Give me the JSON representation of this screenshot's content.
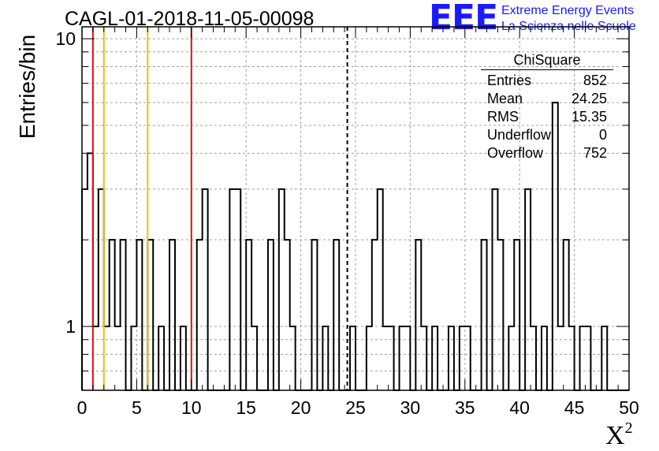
{
  "chart_data": {
    "type": "histogram",
    "title": "CAGL-01-2018-11-05-00098",
    "xlabel": "X",
    "xlabel_sup": "2",
    "ylabel": "Entries/bin",
    "xlim": [
      0,
      50
    ],
    "ylim": [
      0.6,
      11
    ],
    "y_scale": "log",
    "grid": true,
    "bin_width": 0.5,
    "x_ticks": [
      0,
      5,
      10,
      15,
      20,
      25,
      30,
      35,
      40,
      45,
      50
    ],
    "y_ticks": [
      1,
      10
    ],
    "bins": [
      [
        0,
        3
      ],
      [
        0.5,
        4
      ],
      [
        1,
        1
      ],
      [
        1.5,
        3
      ],
      [
        2,
        1
      ],
      [
        2.5,
        2
      ],
      [
        3,
        1
      ],
      [
        3.5,
        2
      ],
      [
        4,
        0
      ],
      [
        4.5,
        1
      ],
      [
        5,
        2
      ],
      [
        5.5,
        0
      ],
      [
        6,
        2
      ],
      [
        6.5,
        0
      ],
      [
        7,
        1
      ],
      [
        7.5,
        0
      ],
      [
        8,
        2
      ],
      [
        8.5,
        0
      ],
      [
        9,
        1
      ],
      [
        9.5,
        0
      ],
      [
        10,
        0
      ],
      [
        10.5,
        2
      ],
      [
        11,
        3
      ],
      [
        11.5,
        0
      ],
      [
        12,
        0
      ],
      [
        12.5,
        0
      ],
      [
        13,
        0
      ],
      [
        13.5,
        3
      ],
      [
        14,
        3
      ],
      [
        14.5,
        0
      ],
      [
        15,
        2
      ],
      [
        15.5,
        1
      ],
      [
        16,
        0
      ],
      [
        16.5,
        0
      ],
      [
        17,
        2
      ],
      [
        17.5,
        0
      ],
      [
        18,
        3
      ],
      [
        18.5,
        2
      ],
      [
        19,
        1
      ],
      [
        19.5,
        0
      ],
      [
        20,
        0
      ],
      [
        20.5,
        0
      ],
      [
        21,
        2
      ],
      [
        21.5,
        0
      ],
      [
        22,
        1
      ],
      [
        22.5,
        0
      ],
      [
        23,
        2
      ],
      [
        23.5,
        0
      ],
      [
        24,
        0
      ],
      [
        24.5,
        1
      ],
      [
        25,
        0
      ],
      [
        25.5,
        0
      ],
      [
        26,
        1
      ],
      [
        26.5,
        2
      ],
      [
        27,
        3
      ],
      [
        27.5,
        1
      ],
      [
        28,
        1
      ],
      [
        28.5,
        0
      ],
      [
        29,
        1
      ],
      [
        29.5,
        1
      ],
      [
        30,
        0
      ],
      [
        30.5,
        2
      ],
      [
        31,
        1
      ],
      [
        31.5,
        0
      ],
      [
        32,
        1
      ],
      [
        32.5,
        0
      ],
      [
        33,
        0
      ],
      [
        33.5,
        1
      ],
      [
        34,
        0
      ],
      [
        34.5,
        1
      ],
      [
        35,
        1
      ],
      [
        35.5,
        0
      ],
      [
        36,
        0
      ],
      [
        36.5,
        2
      ],
      [
        37,
        0
      ],
      [
        37.5,
        3
      ],
      [
        38,
        2
      ],
      [
        38.5,
        0
      ],
      [
        39,
        1
      ],
      [
        39.5,
        2
      ],
      [
        40,
        0
      ],
      [
        40.5,
        3
      ],
      [
        41,
        1
      ],
      [
        41.5,
        0
      ],
      [
        42,
        1
      ],
      [
        42.5,
        0
      ],
      [
        43,
        6
      ],
      [
        43.5,
        1
      ],
      [
        44,
        2
      ],
      [
        44.5,
        1
      ],
      [
        45,
        0
      ],
      [
        45.5,
        1
      ],
      [
        46,
        1
      ],
      [
        46.5,
        0
      ],
      [
        47,
        0
      ],
      [
        47.5,
        1
      ],
      [
        48,
        0
      ],
      [
        48.5,
        0
      ],
      [
        49,
        0
      ],
      [
        49.5,
        0
      ]
    ],
    "vertical_lines": [
      {
        "x": 1,
        "color": "#dd1111",
        "style": "solid"
      },
      {
        "x": 2,
        "color": "#f0c000",
        "style": "solid"
      },
      {
        "x": 6,
        "color": "#f0c000",
        "style": "solid"
      },
      {
        "x": 10,
        "color": "#dd1111",
        "style": "solid"
      },
      {
        "x": 24.25,
        "color": "#000000",
        "style": "dashed"
      }
    ],
    "stats_box": {
      "title": "ChiSquare",
      "rows": [
        {
          "label": "Entries",
          "value": "852"
        },
        {
          "label": "Mean",
          "value": "24.25"
        },
        {
          "label": "RMS",
          "value": "15.35"
        },
        {
          "label": "Underflow",
          "value": "0"
        },
        {
          "label": "Overflow",
          "value": "752"
        }
      ]
    }
  },
  "logo": {
    "mark": "EEE",
    "line1": "Extreme Energy Events",
    "line2": "La Scienza nelle Scuole"
  },
  "colors": {
    "logo": "#1a1aff",
    "histogram": "#000000",
    "grid": "#a0a0a0"
  }
}
